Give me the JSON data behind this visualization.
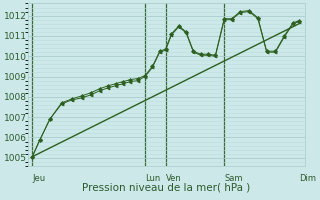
{
  "xlabel": "Pression niveau de la mer( hPa )",
  "bg_color": "#cce8e8",
  "grid_major_color": "#aacccc",
  "grid_minor_color": "#bbdddd",
  "line_color": "#2d6020",
  "vline_color": "#3a6a3a",
  "tick_label_color": "#2d5a2d",
  "xlabel_color": "#2d5a2d",
  "ylim": [
    1004.6,
    1012.6
  ],
  "yticks": [
    1005,
    1006,
    1007,
    1008,
    1009,
    1010,
    1011,
    1012
  ],
  "xlim": [
    -0.15,
    9.3
  ],
  "x_day_labels": [
    {
      "label": "Jeu",
      "x": 0.0
    },
    {
      "label": "Lun",
      "x": 3.85
    },
    {
      "label": "Ven",
      "x": 4.55
    },
    {
      "label": "Sam",
      "x": 6.55
    },
    {
      "label": "Dim",
      "x": 9.1
    }
  ],
  "x_day_vlines": [
    0.0,
    3.85,
    4.55,
    6.55
  ],
  "series_main": {
    "x": [
      0.0,
      0.25,
      0.6,
      1.0,
      1.35,
      1.7,
      2.0,
      2.3,
      2.6,
      2.85,
      3.1,
      3.35,
      3.6,
      3.85,
      4.1,
      4.35,
      4.55,
      4.75,
      5.0,
      5.25,
      5.5,
      5.75,
      6.0,
      6.25,
      6.55,
      6.8,
      7.1,
      7.4,
      7.7,
      8.0,
      8.3,
      8.6,
      8.9,
      9.1
    ],
    "y": [
      1005.05,
      1005.85,
      1006.9,
      1007.7,
      1007.9,
      1008.05,
      1008.2,
      1008.4,
      1008.55,
      1008.65,
      1008.75,
      1008.85,
      1008.9,
      1009.05,
      1009.5,
      1010.25,
      1010.35,
      1011.1,
      1011.5,
      1011.2,
      1010.25,
      1010.1,
      1010.1,
      1010.05,
      1011.85,
      1011.85,
      1012.2,
      1012.25,
      1011.9,
      1010.25,
      1010.25,
      1011.0,
      1011.65,
      1011.75
    ]
  },
  "series_secondary": {
    "x": [
      0.0,
      0.25,
      0.6,
      1.0,
      1.35,
      1.7,
      2.0,
      2.3,
      2.6,
      2.85,
      3.1,
      3.35,
      3.6,
      3.85,
      4.1,
      4.35,
      4.55,
      4.75,
      5.0,
      5.25,
      5.5,
      5.75,
      6.0,
      6.25,
      6.55,
      6.8,
      7.1,
      7.4,
      7.7,
      8.0,
      8.3,
      8.6,
      8.9,
      9.1
    ],
    "y": [
      1005.05,
      1005.85,
      1006.9,
      1007.65,
      1007.85,
      1007.95,
      1008.1,
      1008.3,
      1008.45,
      1008.55,
      1008.65,
      1008.75,
      1008.8,
      1009.0,
      1009.45,
      1010.2,
      1010.3,
      1011.05,
      1011.45,
      1011.15,
      1010.2,
      1010.05,
      1010.05,
      1010.0,
      1011.8,
      1011.8,
      1012.15,
      1012.2,
      1011.85,
      1010.2,
      1010.2,
      1010.95,
      1011.6,
      1011.7
    ]
  },
  "series_trend": {
    "x": [
      0.0,
      9.1
    ],
    "y": [
      1005.05,
      1011.6
    ]
  }
}
